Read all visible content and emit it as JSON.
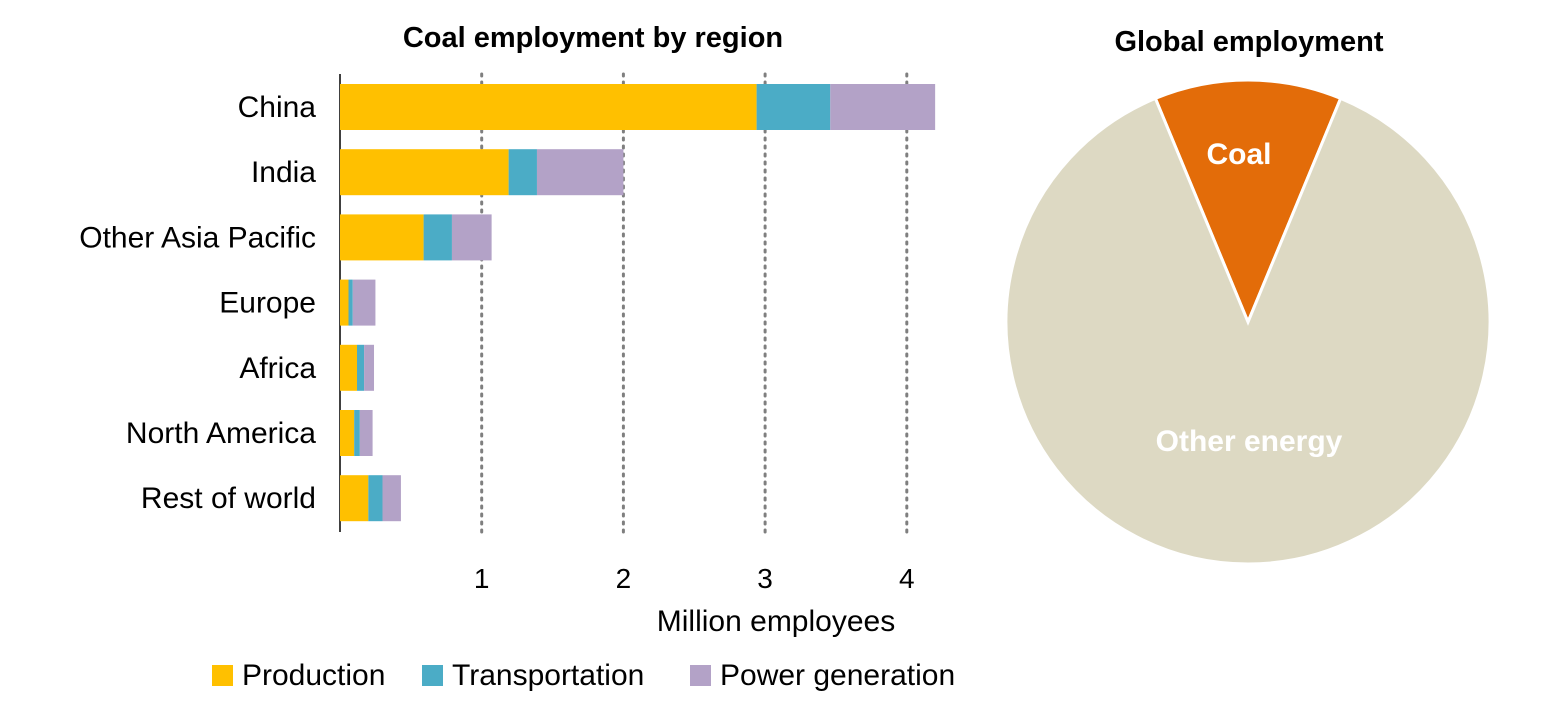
{
  "chart_data": [
    {
      "type": "bar",
      "orientation": "horizontal",
      "stacked": true,
      "title": "Coal employment by region",
      "xlabel": "Million employees",
      "ylabel": "",
      "xlim": [
        0,
        4.2
      ],
      "xticks": [
        "1",
        "2",
        "3",
        "4"
      ],
      "grid": "vertical dotted",
      "legend_position": "bottom",
      "categories": [
        "China",
        "India",
        "Other Asia Pacific",
        "Europe",
        "Africa",
        "North America",
        "Rest of world"
      ],
      "series": [
        {
          "name": "Production",
          "color": "#FFC000",
          "values": [
            2.94,
            1.19,
            0.59,
            0.06,
            0.12,
            0.1,
            0.2
          ]
        },
        {
          "name": "Transportation",
          "color": "#4BACC6",
          "values": [
            0.52,
            0.2,
            0.2,
            0.03,
            0.05,
            0.04,
            0.1
          ]
        },
        {
          "name": "Power generation",
          "color": "#B3A2C7",
          "values": [
            0.74,
            0.61,
            0.28,
            0.16,
            0.07,
            0.09,
            0.13
          ]
        }
      ]
    },
    {
      "type": "pie",
      "title": "Global employment",
      "slices": [
        {
          "label": "Coal",
          "value": 12.5,
          "color": "#E36C09"
        },
        {
          "label": "Other energy",
          "value": 87.5,
          "color": "#DDD9C3"
        }
      ]
    }
  ]
}
